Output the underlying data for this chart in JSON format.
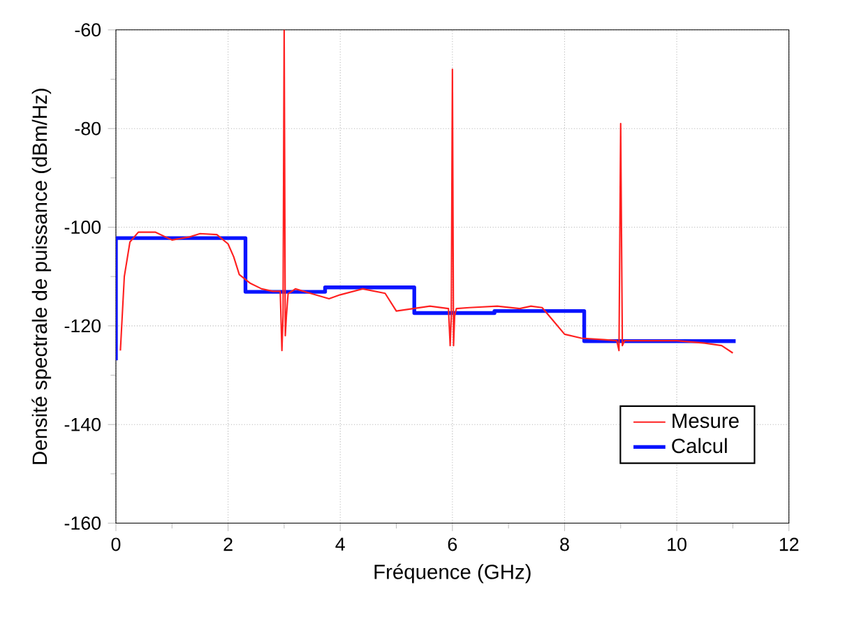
{
  "chart_data": {
    "type": "line",
    "xlabel": "Fréquence (GHz)",
    "ylabel": "Densité spectrale de puissance (dBm/Hz)",
    "xlim": [
      0,
      12
    ],
    "ylim": [
      -160,
      -60
    ],
    "xticks": [
      0,
      2,
      4,
      6,
      8,
      10,
      12
    ],
    "yticks": [
      -160,
      -140,
      -120,
      -100,
      -80,
      -60
    ],
    "grid": true,
    "legend": "bottom right",
    "marker": "none",
    "line_style": "solid",
    "series": [
      {
        "name": "Mesure",
        "color": "#ff2020",
        "x": [
          0.08,
          0.15,
          0.25,
          0.4,
          0.7,
          1.0,
          1.3,
          1.5,
          1.8,
          2.0,
          2.1,
          2.2,
          2.3,
          2.4,
          2.6,
          2.8,
          2.93,
          2.96,
          2.98,
          3.0,
          3.02,
          3.04,
          3.07,
          3.2,
          3.5,
          3.8,
          4.0,
          4.4,
          4.8,
          5.0,
          5.3,
          5.6,
          5.93,
          5.96,
          5.98,
          6.0,
          6.02,
          6.04,
          6.07,
          6.3,
          6.8,
          7.2,
          7.4,
          7.6,
          7.8,
          8.0,
          8.3,
          8.7,
          8.93,
          8.97,
          9.0,
          9.03,
          9.07,
          9.5,
          10.0,
          10.5,
          10.8,
          11.0
        ],
        "values": [
          -125,
          -110,
          -103,
          -101,
          -101,
          -102.6,
          -102,
          -101.3,
          -101.5,
          -103.4,
          -106,
          -109.6,
          -110.5,
          -111.4,
          -112.5,
          -113,
          -113,
          -125,
          -118,
          -60,
          -122,
          -118,
          -113.5,
          -112.5,
          -113.5,
          -114.5,
          -113.7,
          -112.5,
          -113.4,
          -117,
          -116.5,
          -116,
          -116.5,
          -124,
          -118,
          -68,
          -124,
          -118,
          -116.5,
          -116.3,
          -116,
          -116.5,
          -116,
          -116.3,
          -119,
          -121.7,
          -122.5,
          -122.8,
          -123,
          -125,
          -79,
          -124,
          -123,
          -123,
          -123,
          -123.5,
          -124,
          -125.5
        ]
      },
      {
        "name": "Calcul",
        "color": "#0a14ff",
        "x": [
          0,
          0,
          2.31,
          2.31,
          3.73,
          3.73,
          5.32,
          5.32,
          6.75,
          6.75,
          8.35,
          8.35,
          11.05
        ],
        "values": [
          -127,
          -102.2,
          -102.2,
          -113.1,
          -113.1,
          -112.2,
          -112.2,
          -117.4,
          -117.4,
          -117,
          -117,
          -123.1,
          -123.1
        ]
      }
    ]
  }
}
